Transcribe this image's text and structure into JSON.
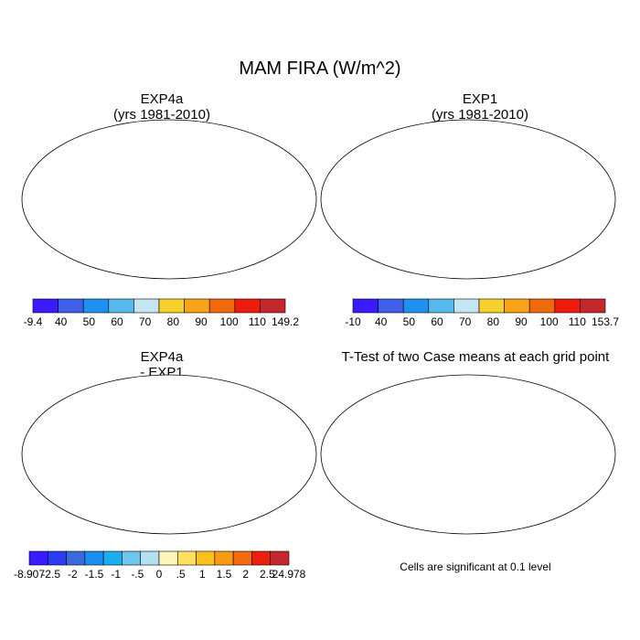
{
  "main_title": "MAM FIRA (W/m^2)",
  "panels": {
    "exp4a": {
      "title": "EXP4a",
      "subtitle": "(yrs 1981-2010)"
    },
    "exp1": {
      "title": "EXP1",
      "subtitle": "(yrs 1981-2010)"
    },
    "diff": {
      "title": "EXP4a",
      "subtitle": "- EXP1"
    },
    "ttest": {
      "title": "T-Test of two Case means at each grid point"
    }
  },
  "colorbars": {
    "exp4a": {
      "colors": [
        "#3a1aff",
        "#3f5fe8",
        "#1e90f0",
        "#56b9ec",
        "#c4e6f4",
        "#f8d22c",
        "#f9a31a",
        "#f06a0c",
        "#ee1a0e",
        "#c4282c"
      ],
      "labels": [
        "-9.4",
        "40",
        "50",
        "60",
        "70",
        "80",
        "90",
        "100",
        "110",
        "149.2"
      ]
    },
    "exp1": {
      "colors": [
        "#3a1aff",
        "#3f5fe8",
        "#1e90f0",
        "#56b9ec",
        "#c4e6f4",
        "#f8d22c",
        "#f9a31a",
        "#f06a0c",
        "#ee1a0e",
        "#c4282c"
      ],
      "labels": [
        "-10",
        "40",
        "50",
        "60",
        "70",
        "80",
        "90",
        "100",
        "110",
        "153.7"
      ]
    },
    "diff": {
      "colors": [
        "#3a1aff",
        "#2a3cf0",
        "#3a6ae0",
        "#1a8ef0",
        "#1aaef0",
        "#6ec6ee",
        "#b2e2f2",
        "#fdf6b8",
        "#fde060",
        "#fbc01e",
        "#f99a12",
        "#f46a0c",
        "#e8200c",
        "#c4282c"
      ],
      "labels": [
        "-8.907",
        "-2.5",
        "-2",
        "-1.5",
        "-1",
        "-.5",
        "0",
        ".5",
        "1",
        "1.5",
        "2",
        "2.5",
        "24.978"
      ]
    }
  },
  "ttest_note": "Cells are significant at 0.1 level"
}
